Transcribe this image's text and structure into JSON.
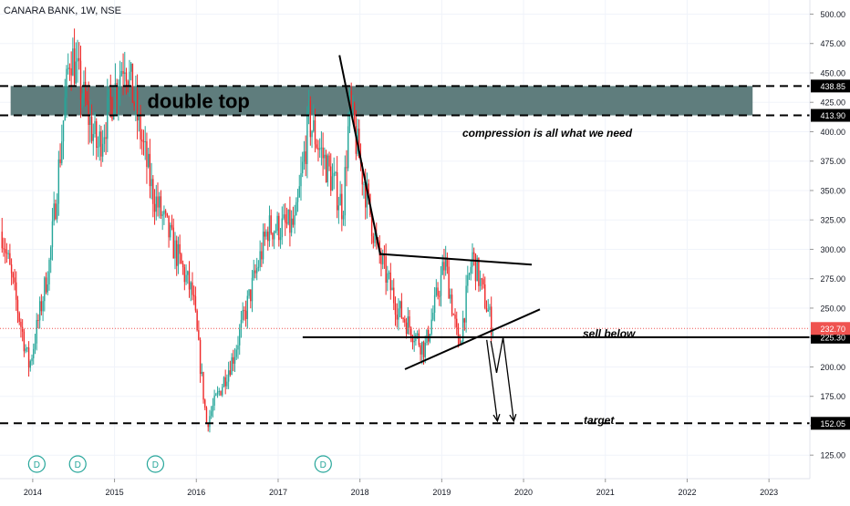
{
  "header": {
    "ticker": "CANARA BANK, 1W, NSE"
  },
  "colors": {
    "up": "#26a69a",
    "down": "#ef2929",
    "zone_fill": "#5f7d7d",
    "price_line": "#ef5350",
    "price_label_bg": "#ef5350",
    "tag_bg": "#000000",
    "dividend_marker": "#26a69a",
    "axis_text": "#131722",
    "drawing": "#000000"
  },
  "annotations": {
    "double_top": "double top",
    "compression": "compression is all what we need",
    "sell_below": "sell below",
    "target": "target",
    "dividend_letter": "D"
  },
  "chart_data": {
    "type": "candlestick",
    "title": "CANARA BANK, 1W, NSE",
    "x_ticks": [
      "2014",
      "2015",
      "2016",
      "2017",
      "2018",
      "2019",
      "2020",
      "2021",
      "2022",
      "2023"
    ],
    "x_tick_years": [
      2014,
      2015,
      2016,
      2017,
      2018,
      2019,
      2020,
      2021,
      2022,
      2023
    ],
    "x_range": [
      2013.6,
      2023.5
    ],
    "y_ticks": [
      "500.00",
      "475.00",
      "450.00",
      "425.00",
      "400.00",
      "375.00",
      "350.00",
      "325.00",
      "300.00",
      "275.00",
      "250.00",
      "225.00",
      "200.00",
      "175.00",
      "150.00",
      "125.00"
    ],
    "y_tick_values": [
      500,
      475,
      450,
      425,
      400,
      375,
      350,
      325,
      300,
      275,
      250,
      225,
      200,
      175,
      150,
      125
    ],
    "ylim": [
      105,
      512
    ],
    "last_price": {
      "label": "232.70",
      "value": 232.7
    },
    "levels": [
      {
        "label": "438.85",
        "value": 438.85,
        "style": "dashed"
      },
      {
        "label": "413.90",
        "value": 413.9,
        "style": "dashed"
      },
      {
        "label": "225.30",
        "value": 225.3,
        "style": "solid"
      },
      {
        "label": "152.05",
        "value": 152.05,
        "style": "dashed"
      }
    ],
    "double_top_zone": {
      "top": 438.85,
      "bottom": 413.9,
      "x_start": 2013.73,
      "x_end": 2022.8
    },
    "sell_below_level": {
      "value": 225.3,
      "x_start": 2017.3,
      "x_end": 2023.5
    },
    "trendlines": [
      {
        "name": "down-leg",
        "points": [
          [
            2017.75,
            465
          ],
          [
            2018.25,
            295
          ]
        ]
      },
      {
        "name": "triangle-top",
        "points": [
          [
            2018.25,
            296
          ],
          [
            2020.1,
            287
          ]
        ]
      },
      {
        "name": "triangle-bottom",
        "points": [
          [
            2018.55,
            198
          ],
          [
            2020.2,
            249
          ]
        ]
      }
    ],
    "projection_arrows": [
      {
        "points": [
          [
            2019.55,
            223
          ],
          [
            2019.68,
            154
          ]
        ]
      },
      {
        "points": [
          [
            2019.6,
            222
          ],
          [
            2019.67,
            195
          ],
          [
            2019.75,
            225
          ],
          [
            2019.88,
            154
          ]
        ]
      }
    ],
    "dividend_marks": [
      2014.05,
      2014.55,
      2015.5,
      2017.55
    ],
    "key_points": [
      {
        "date": "2013-08",
        "close": 315
      },
      {
        "date": "2013-12",
        "close": 200
      },
      {
        "date": "2014-03",
        "close": 290
      },
      {
        "date": "2014-06",
        "close": 470
      },
      {
        "date": "2014-10",
        "close": 385
      },
      {
        "date": "2015-02",
        "close": 465
      },
      {
        "date": "2015-06",
        "close": 350
      },
      {
        "date": "2015-12",
        "close": 260
      },
      {
        "date": "2016-02",
        "close": 152
      },
      {
        "date": "2016-06",
        "close": 210
      },
      {
        "date": "2016-11",
        "close": 318
      },
      {
        "date": "2017-03",
        "close": 320
      },
      {
        "date": "2017-05",
        "close": 410
      },
      {
        "date": "2017-10",
        "close": 335
      },
      {
        "date": "2017-11",
        "close": 420
      },
      {
        "date": "2018-03",
        "close": 300
      },
      {
        "date": "2018-06",
        "close": 250
      },
      {
        "date": "2018-10",
        "close": 215
      },
      {
        "date": "2019-01",
        "close": 290
      },
      {
        "date": "2019-03",
        "close": 215
      },
      {
        "date": "2019-05",
        "close": 295
      },
      {
        "date": "2019-08",
        "close": 232.7
      }
    ]
  }
}
